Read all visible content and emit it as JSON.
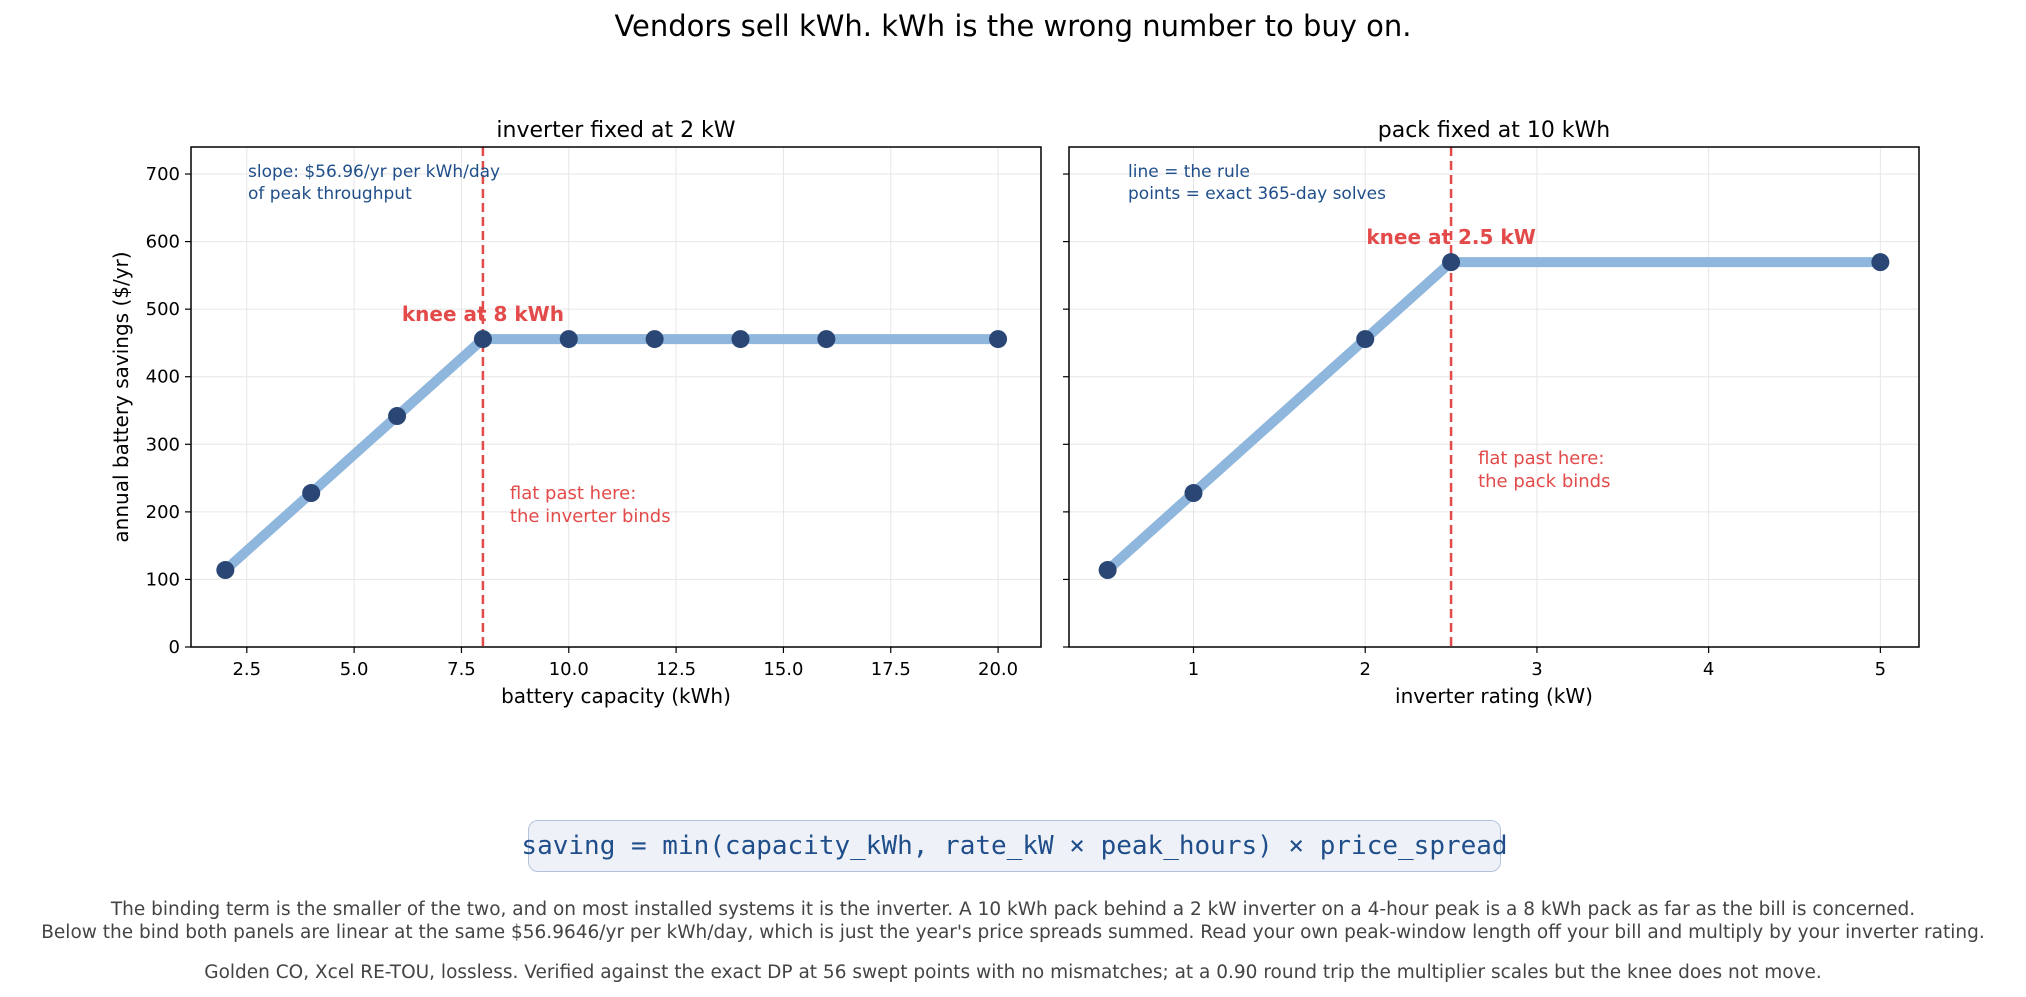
{
  "figure": {
    "suptitle": "Vendors sell kWh. kWh is the wrong number to buy on.",
    "formula": "saving = min(capacity_kWh, rate_kW × peak_hours) × price_spread",
    "captions": [
      "The binding term is the smaller of the two, and on most installed systems it is the inverter. A 10 kWh pack behind a 2 kW inverter on a 4-hour peak is a 8 kWh pack as far as the bill is concerned.",
      "Below the bind both panels are linear at the same $56.9646/yr per kWh/day, which is just the year's price spreads summed. Read your own peak-window length off your bill and multiply by your inverter rating.",
      "Golden CO, Xcel RE-TOU, lossless. Verified against the exact DP at 56 swept points with no mismatches; at a 0.90 round trip the multiplier scales but the knee does not move."
    ],
    "colors": {
      "line": "#8fb6dc",
      "points": "#2a4674",
      "knee": "#e34a4a",
      "note": "#1f4e8a",
      "formula_bg": "#eef2f8"
    }
  },
  "chart_data": [
    {
      "type": "line",
      "title": "inverter fixed at 2 kW",
      "xlabel": "battery capacity (kWh)",
      "ylabel": "annual battery savings ($/yr)",
      "xlim": [
        1.2,
        21.0
      ],
      "ylim": [
        0,
        740
      ],
      "xticks": [
        2.5,
        5.0,
        7.5,
        10.0,
        12.5,
        15.0,
        17.5,
        20.0
      ],
      "xtick_labels": [
        "2.5",
        "5.0",
        "7.5",
        "10.0",
        "12.5",
        "15.0",
        "17.5",
        "20.0"
      ],
      "yticks": [
        0,
        100,
        200,
        300,
        400,
        500,
        600,
        700
      ],
      "ytick_labels": [
        "0",
        "100",
        "200",
        "300",
        "400",
        "500",
        "600",
        "700"
      ],
      "grid": true,
      "rule_line": {
        "x": [
          2,
          8,
          20
        ],
        "y": [
          113.9,
          455.7,
          455.7
        ]
      },
      "points": {
        "x": [
          2,
          4,
          6,
          8,
          10,
          12,
          14,
          16,
          20
        ],
        "y": [
          113.9,
          227.9,
          341.8,
          455.7,
          455.7,
          455.7,
          455.7,
          455.7,
          455.7
        ]
      },
      "knee_x": 8,
      "knee_label": "knee at 8 kWh",
      "flat_note": [
        "flat past here:",
        "the inverter binds"
      ],
      "corner_note": [
        "slope: $56.96/yr per kWh/day",
        "of peak throughput"
      ]
    },
    {
      "type": "line",
      "title": "pack fixed at 10 kWh",
      "xlabel": "inverter rating (kW)",
      "ylabel": "",
      "xlim": [
        0.275,
        5.225
      ],
      "ylim": [
        0,
        740
      ],
      "xticks": [
        1,
        2,
        3,
        4,
        5
      ],
      "xtick_labels": [
        "1",
        "2",
        "3",
        "4",
        "5"
      ],
      "yticks": [
        0,
        100,
        200,
        300,
        400,
        500,
        600,
        700
      ],
      "ytick_labels": [],
      "grid": true,
      "rule_line": {
        "x": [
          0.5,
          2.5,
          5
        ],
        "y": [
          113.9,
          569.6,
          569.6
        ]
      },
      "points": {
        "x": [
          0.5,
          1,
          2,
          2.5,
          5
        ],
        "y": [
          113.9,
          227.9,
          455.7,
          569.6,
          569.6
        ]
      },
      "knee_x": 2.5,
      "knee_label": "knee at 2.5 kW",
      "flat_note": [
        "flat past here:",
        "the pack binds"
      ],
      "corner_note": [
        "line = the rule",
        "points = exact 365-day solves"
      ]
    }
  ]
}
